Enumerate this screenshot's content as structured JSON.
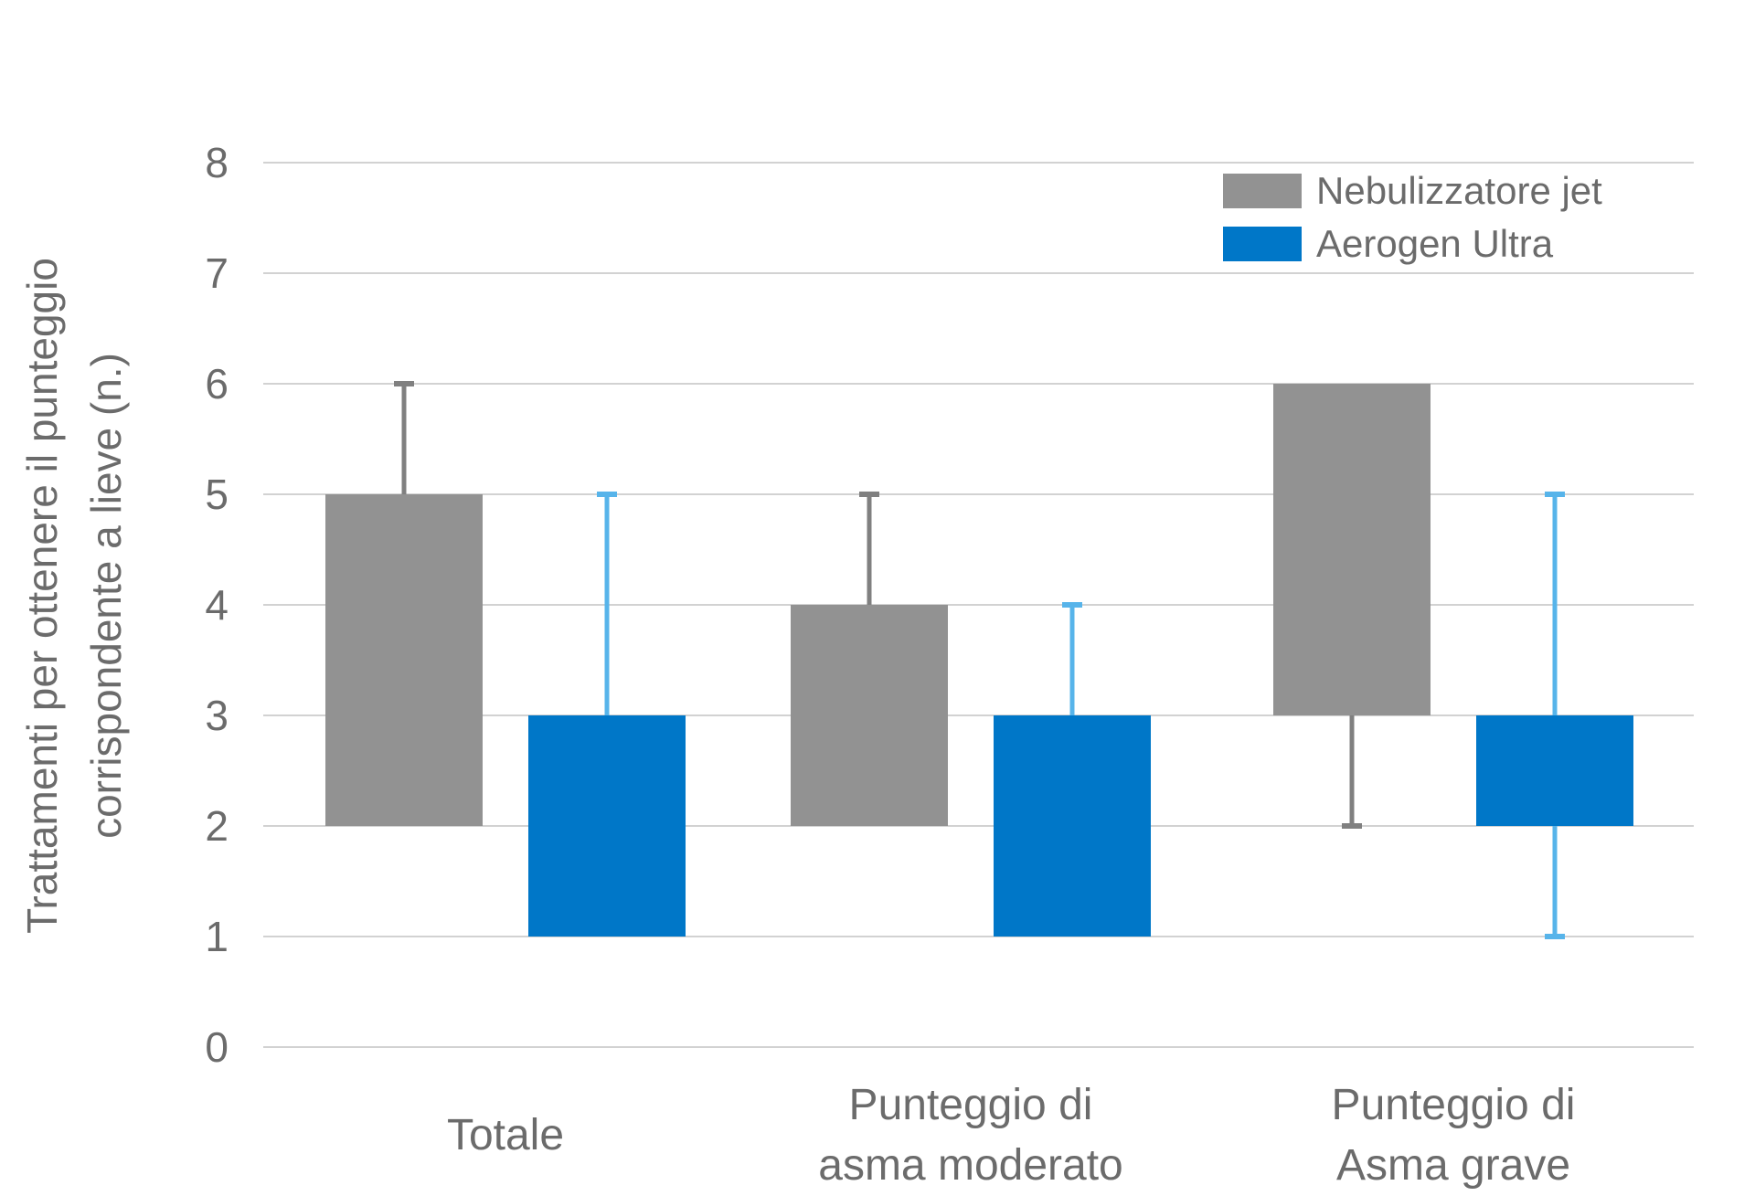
{
  "chart_data": {
    "type": "bar",
    "title": "",
    "ylabel": [
      "Trattamenti per ottenere il punteggio",
      "corrispondente a lieve (n.)"
    ],
    "ylim": [
      0,
      8
    ],
    "yticks": [
      "0",
      "1",
      "2",
      "3",
      "4",
      "5",
      "6",
      "7",
      "8"
    ],
    "grid": true,
    "legend_position": "top-right",
    "categories": [
      [
        "Totale"
      ],
      [
        "Punteggio di",
        "asma moderato"
      ],
      [
        "Punteggio di",
        "Asma grave"
      ]
    ],
    "series": [
      {
        "name": "Nebulizzatore jet",
        "color": "#929292",
        "whisker_color": "#808080",
        "boxes": [
          {
            "low": 2,
            "high": 5,
            "whisker_low": 2,
            "whisker_high": 6
          },
          {
            "low": 2,
            "high": 4,
            "whisker_low": 2,
            "whisker_high": 5
          },
          {
            "low": 3,
            "high": 6,
            "whisker_low": 2,
            "whisker_high": 6
          }
        ]
      },
      {
        "name": "Aerogen Ultra",
        "color": "#0077c8",
        "whisker_color": "#57b4ea",
        "boxes": [
          {
            "low": 1,
            "high": 3,
            "whisker_low": 1,
            "whisker_high": 5
          },
          {
            "low": 1,
            "high": 3,
            "whisker_low": 1,
            "whisker_high": 4
          },
          {
            "low": 2,
            "high": 3,
            "whisker_low": 1,
            "whisker_high": 5
          }
        ]
      }
    ]
  }
}
